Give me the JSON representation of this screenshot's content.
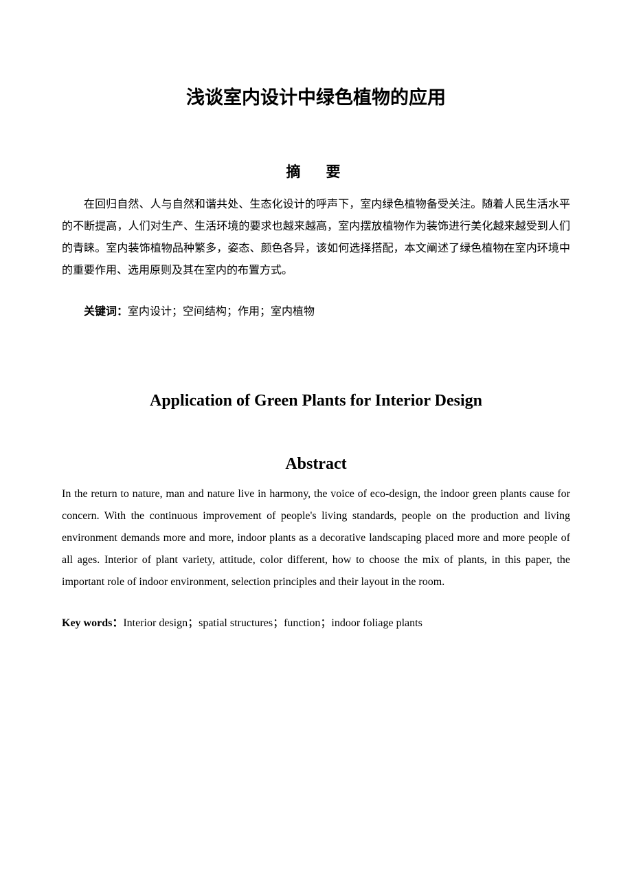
{
  "chinese": {
    "title": "浅谈室内设计中绿色植物的应用",
    "abstract_heading": "摘　要",
    "abstract_body": "在回归自然、人与自然和谐共处、生态化设计的呼声下，室内绿色植物备受关注。随着人民生活水平的不断提高，人们对生产、生活环境的要求也越来越高，室内摆放植物作为装饰进行美化越来越受到人们的青睐。室内装饰植物品种繁多，姿态、颜色各异，该如何选择搭配，本文阐述了绿色植物在室内环境中的重要作用、选用原则及其在室内的布置方式。",
    "keywords_label": "关键词：",
    "keywords_value": "室内设计；空间结构；作用；室内植物"
  },
  "english": {
    "title": "Application of Green Plants for Interior Design",
    "abstract_heading": "Abstract",
    "abstract_body": "In the return to nature, man and nature live in harmony, the voice of eco-design, the indoor green plants cause for concern. With the continuous improvement of people's living standards, people on the production and living environment demands more and more, indoor plants as a decorative landscaping placed more and more people of all ages. Interior of plant variety, attitude, color different, how to choose the mix of plants, in this paper, the important role of indoor environment, selection principles and their layout in the room.",
    "keywords_label": "Key words：",
    "keywords_value": "Interior design；spatial structures；function；indoor foliage plants"
  }
}
